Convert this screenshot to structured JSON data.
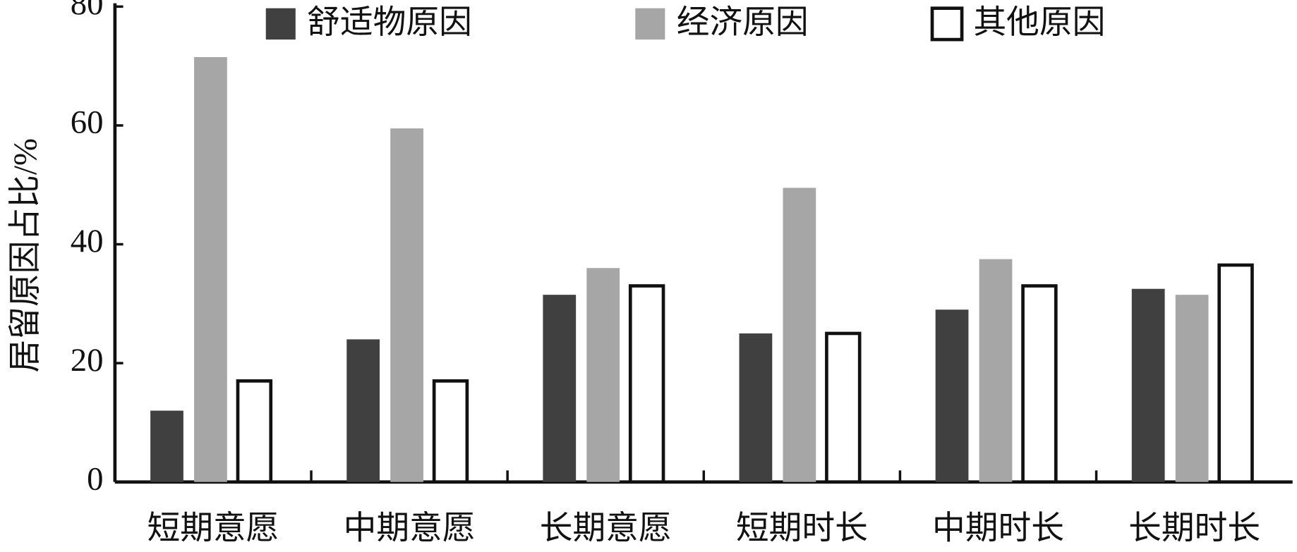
{
  "chart_data": {
    "type": "bar",
    "y_label": "居留原因占比/%",
    "categories": [
      "短期意愿",
      "中期意愿",
      "长期意愿",
      "短期时长",
      "中期时长",
      "长期时长"
    ],
    "series": [
      {
        "name": "舒适物原因",
        "color": "#404040",
        "values": [
          12,
          24,
          31.5,
          25,
          29,
          32.5
        ]
      },
      {
        "name": "经济原因",
        "color": "#a6a6a6",
        "values": [
          71.5,
          59.5,
          36,
          49.5,
          37.5,
          31.5
        ]
      },
      {
        "name": "其他原因",
        "color": "#ffffff",
        "values": [
          17,
          17,
          33,
          25,
          33,
          36.5
        ]
      }
    ],
    "ylim": [
      0,
      80
    ],
    "yticks": [
      0,
      20,
      40,
      60,
      80
    ],
    "legend": "top"
  }
}
